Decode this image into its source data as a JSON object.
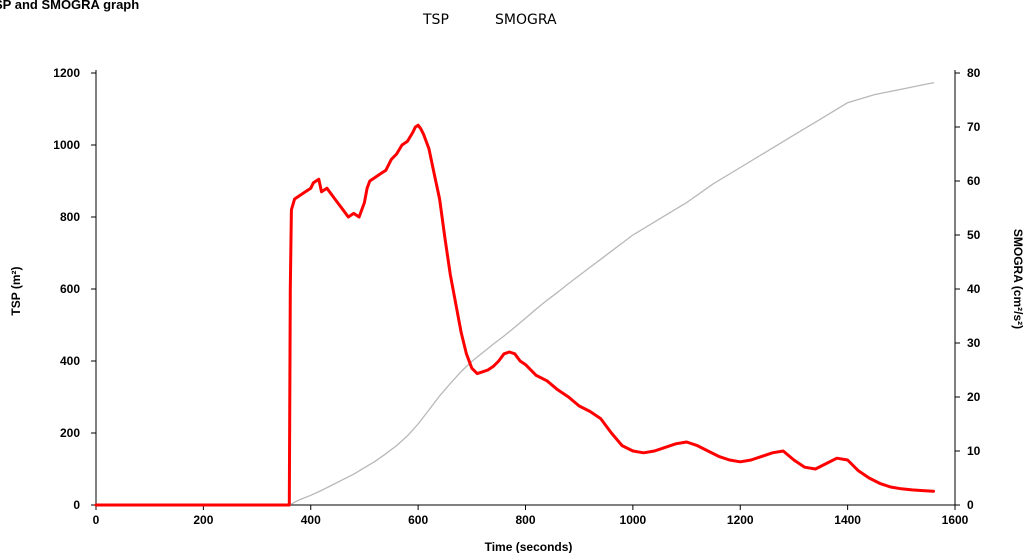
{
  "page": {
    "title": "SP and SMOGRA graph"
  },
  "legend": {
    "items": [
      "TSP",
      "SMOGRA"
    ]
  },
  "colors": {
    "tsp": "#ff0000",
    "smogra": "#b8b8b8",
    "axis": "#000000"
  },
  "chart_data": {
    "type": "line",
    "title": "SP and SMOGRA graph",
    "xlabel": "Time (seconds)",
    "ylabel": "TSP (m²)",
    "y2label": "SMOGRA (cm²/s²)",
    "xlim": [
      0,
      1600
    ],
    "ylim": [
      0,
      1200
    ],
    "y2lim": [
      0,
      80
    ],
    "x_ticks": [
      0,
      200,
      400,
      600,
      800,
      1000,
      1200,
      1400,
      1600
    ],
    "y_ticks": [
      0,
      200,
      400,
      600,
      800,
      1000,
      1200
    ],
    "y2_ticks": [
      0,
      10,
      20,
      30,
      40,
      50,
      60,
      70,
      80
    ],
    "grid": false,
    "legend_position": "top-center",
    "series": [
      {
        "name": "TSP",
        "axis": "left",
        "x": [
          0,
          100,
          200,
          300,
          360,
          362,
          364,
          370,
          380,
          390,
          400,
          405,
          410,
          415,
          420,
          430,
          440,
          450,
          460,
          470,
          480,
          490,
          500,
          505,
          510,
          520,
          530,
          540,
          550,
          560,
          570,
          580,
          590,
          595,
          600,
          605,
          610,
          620,
          630,
          640,
          650,
          660,
          670,
          680,
          690,
          700,
          710,
          720,
          730,
          740,
          750,
          760,
          770,
          780,
          790,
          800,
          820,
          840,
          860,
          880,
          900,
          920,
          940,
          960,
          980,
          1000,
          1020,
          1040,
          1060,
          1080,
          1100,
          1120,
          1140,
          1160,
          1180,
          1200,
          1220,
          1240,
          1260,
          1280,
          1300,
          1320,
          1340,
          1360,
          1380,
          1400,
          1420,
          1440,
          1460,
          1480,
          1500,
          1520,
          1540,
          1560
        ],
        "values": [
          0,
          0,
          0,
          0,
          0,
          600,
          820,
          850,
          860,
          870,
          880,
          895,
          900,
          905,
          870,
          880,
          860,
          840,
          820,
          800,
          810,
          800,
          840,
          880,
          900,
          910,
          920,
          930,
          960,
          975,
          1000,
          1010,
          1035,
          1050,
          1055,
          1045,
          1030,
          990,
          920,
          850,
          740,
          640,
          560,
          480,
          420,
          380,
          365,
          370,
          375,
          385,
          400,
          420,
          425,
          420,
          400,
          390,
          360,
          345,
          320,
          300,
          275,
          260,
          240,
          200,
          165,
          150,
          145,
          150,
          160,
          170,
          175,
          165,
          150,
          135,
          125,
          120,
          125,
          135,
          145,
          150,
          125,
          105,
          100,
          115,
          130,
          125,
          95,
          75,
          60,
          50,
          45,
          42,
          40,
          38
        ]
      },
      {
        "name": "SMOGRA",
        "axis": "right",
        "x": [
          0,
          100,
          200,
          300,
          360,
          380,
          400,
          420,
          440,
          460,
          480,
          500,
          520,
          540,
          560,
          580,
          600,
          620,
          640,
          660,
          680,
          700,
          720,
          740,
          760,
          780,
          800,
          820,
          840,
          860,
          880,
          900,
          920,
          940,
          960,
          980,
          1000,
          1050,
          1100,
          1150,
          1200,
          1250,
          1300,
          1350,
          1400,
          1450,
          1500,
          1550,
          1560
        ],
        "values": [
          0,
          0,
          0,
          0,
          0,
          1,
          1.8,
          2.7,
          3.7,
          4.7,
          5.7,
          6.9,
          8.1,
          9.5,
          11,
          12.8,
          15,
          17.6,
          20.2,
          22.5,
          24.7,
          26.6,
          28.2,
          29.8,
          31.3,
          32.9,
          34.6,
          36.3,
          37.9,
          39.4,
          41,
          42.5,
          44,
          45.5,
          47,
          48.5,
          50,
          53,
          56,
          59.5,
          62.5,
          65.5,
          68.5,
          71.5,
          74.5,
          76,
          77,
          78,
          78.2
        ]
      }
    ]
  }
}
